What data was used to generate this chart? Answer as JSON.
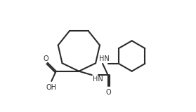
{
  "bg_color": "#ffffff",
  "line_color": "#2b2b2b",
  "lw": 1.5,
  "fs": 7.0,
  "fig_w": 2.79,
  "fig_h": 1.6,
  "dpi": 100,
  "xlim": [
    0.0,
    9.5
  ],
  "ylim": [
    -1.5,
    5.8
  ]
}
